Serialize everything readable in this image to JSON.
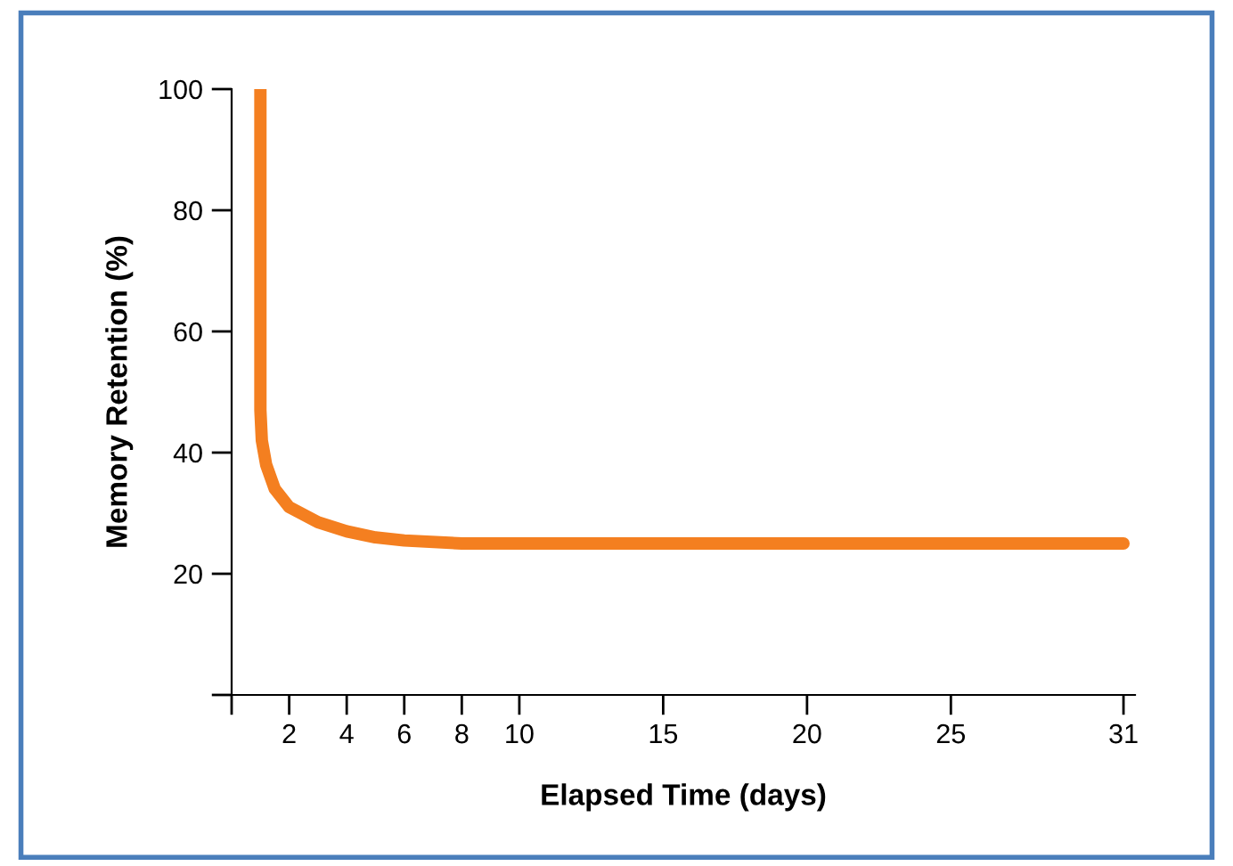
{
  "chart_data": {
    "type": "line",
    "xlabel": "Elapsed Time (days)",
    "ylabel": "Memory Retention (%)",
    "x": [
      1,
      1,
      1.05,
      1.2,
      1.5,
      2,
      3,
      4,
      5,
      6,
      8,
      31
    ],
    "series": [
      {
        "color": "#f47f20",
        "values": [
          100,
          47,
          42,
          38,
          34,
          31,
          28.5,
          27,
          26,
          25.5,
          25,
          25
        ]
      }
    ],
    "xlim": [
      0,
      31.4
    ],
    "ylim": [
      0,
      100
    ],
    "xticks": [
      {
        "value": 0,
        "label": null
      },
      2,
      4,
      6,
      8,
      10,
      15,
      20,
      25,
      31
    ],
    "yticks": [
      {
        "value": 0,
        "label": null
      },
      20,
      40,
      60,
      80,
      100
    ],
    "grid": false,
    "legend": false,
    "marker": "none",
    "line_style": "solid"
  }
}
